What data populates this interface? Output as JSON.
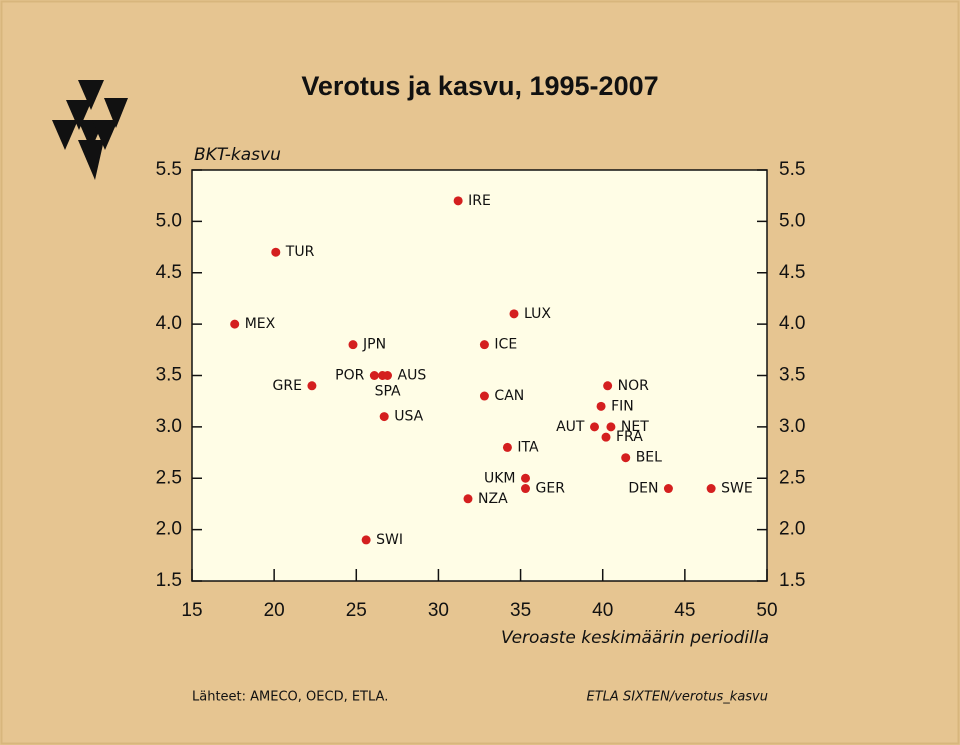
{
  "chart_data": {
    "type": "scatter",
    "title": "Verotus ja kasvu, 1995-2007",
    "y_label": "BKT-kasvu",
    "x_label": "Veroaste keskimäärin periodilla",
    "source": "Lähteet:   AMECO, OECD, ETLA.",
    "note": "ETLA  SIXTEN/verotus_kasvu",
    "color": "#d41f1f",
    "labels": [
      "IRE",
      "TUR",
      "MEX",
      "LUX",
      "JPN",
      "ICE",
      "POR",
      "SPA",
      "AUS",
      "GRE",
      "NOR",
      "CAN",
      "FIN",
      "USA",
      "AUT",
      "NET",
      "FRA",
      "ITA",
      "BEL",
      "UKM",
      "GER",
      "DEN",
      "SWE",
      "NZA",
      "SWI"
    ],
    "x": [
      31.2,
      20.1,
      17.6,
      34.6,
      24.8,
      32.8,
      26.1,
      26.6,
      26.9,
      22.3,
      40.3,
      32.8,
      39.9,
      26.7,
      39.5,
      40.5,
      40.2,
      34.2,
      41.4,
      35.3,
      35.3,
      44.0,
      46.6,
      31.8,
      25.6
    ],
    "y": [
      5.2,
      4.7,
      4.0,
      4.1,
      3.8,
      3.8,
      3.5,
      3.5,
      3.5,
      3.4,
      3.4,
      3.3,
      3.2,
      3.1,
      3.0,
      3.0,
      2.9,
      2.8,
      2.7,
      2.5,
      2.4,
      2.4,
      2.4,
      2.3,
      1.9
    ],
    "xlim": [
      15,
      50
    ],
    "xticks": [
      15,
      20,
      25,
      30,
      35,
      40,
      45,
      50
    ],
    "ylim": [
      1.5,
      5.5
    ],
    "yticks": [
      1.5,
      {
        "value": 2,
        "label": "2.0"
      },
      2.5,
      {
        "value": 3,
        "label": "3.0"
      },
      3.5,
      {
        "value": 4,
        "label": "4.0"
      },
      4.5,
      {
        "value": 5,
        "label": "5.0"
      },
      5.5
    ]
  }
}
